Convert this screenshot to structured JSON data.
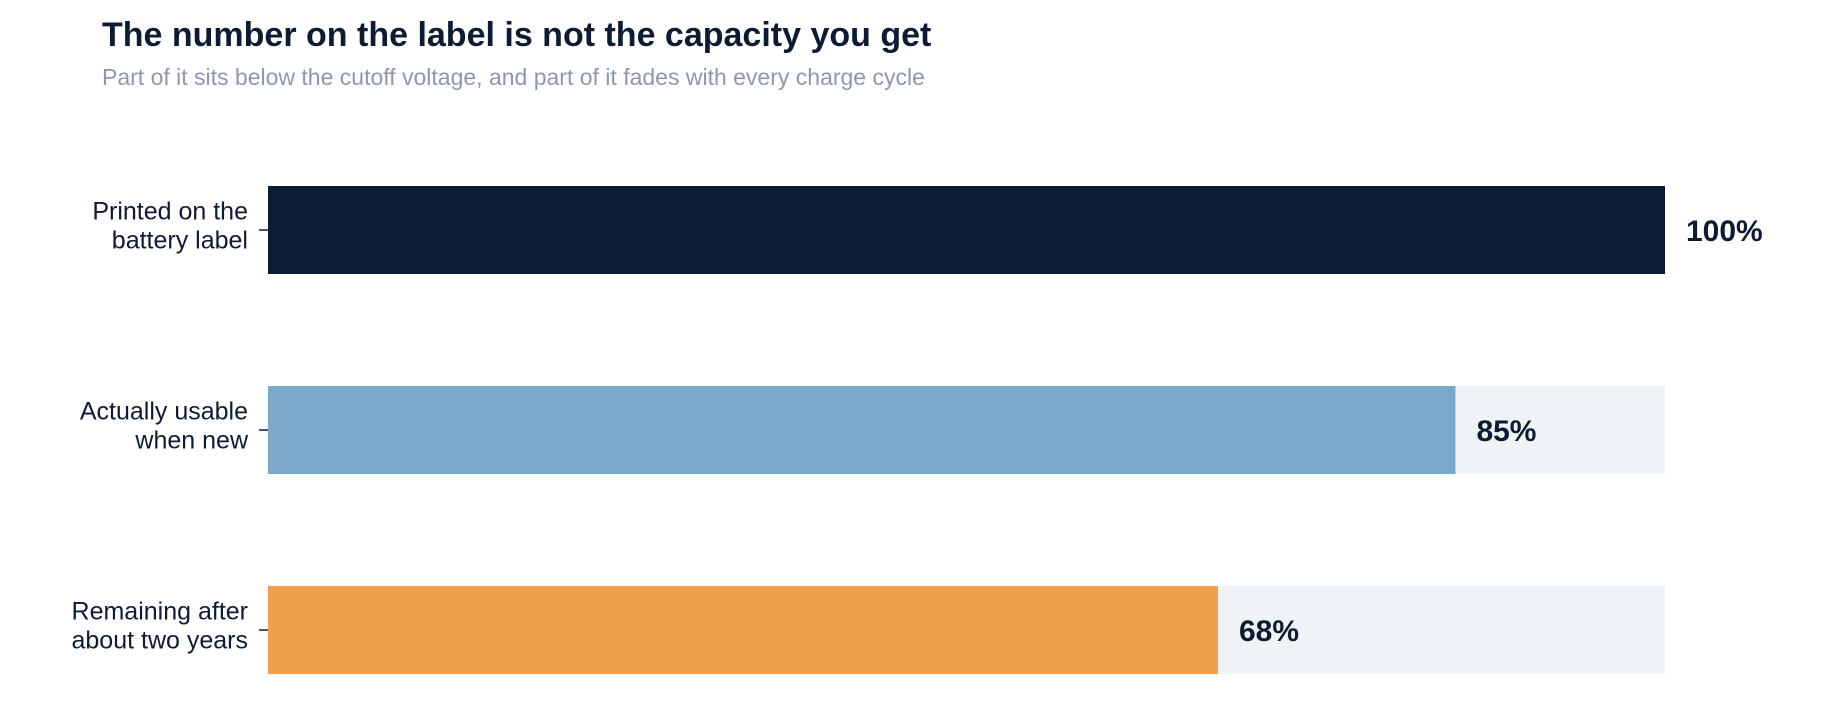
{
  "chart_data": {
    "type": "bar",
    "orientation": "horizontal",
    "title": "The number on the label is not the capacity you get",
    "subtitle": "Part of it sits below the cutoff voltage, and part of it fades with every charge cycle",
    "categories": [
      [
        "Printed on the",
        "battery label"
      ],
      [
        "Actually usable",
        "when new"
      ],
      [
        "Remaining after",
        "about two years"
      ]
    ],
    "values": [
      100,
      85,
      68
    ],
    "value_labels": [
      "100%",
      "85%",
      "68%"
    ],
    "xlim": [
      0,
      100
    ],
    "colors": [
      "#0d1b33",
      "#79a8ca",
      "#efa04b"
    ],
    "track_color": "#eff3f6",
    "grid": false,
    "legend": "none"
  }
}
